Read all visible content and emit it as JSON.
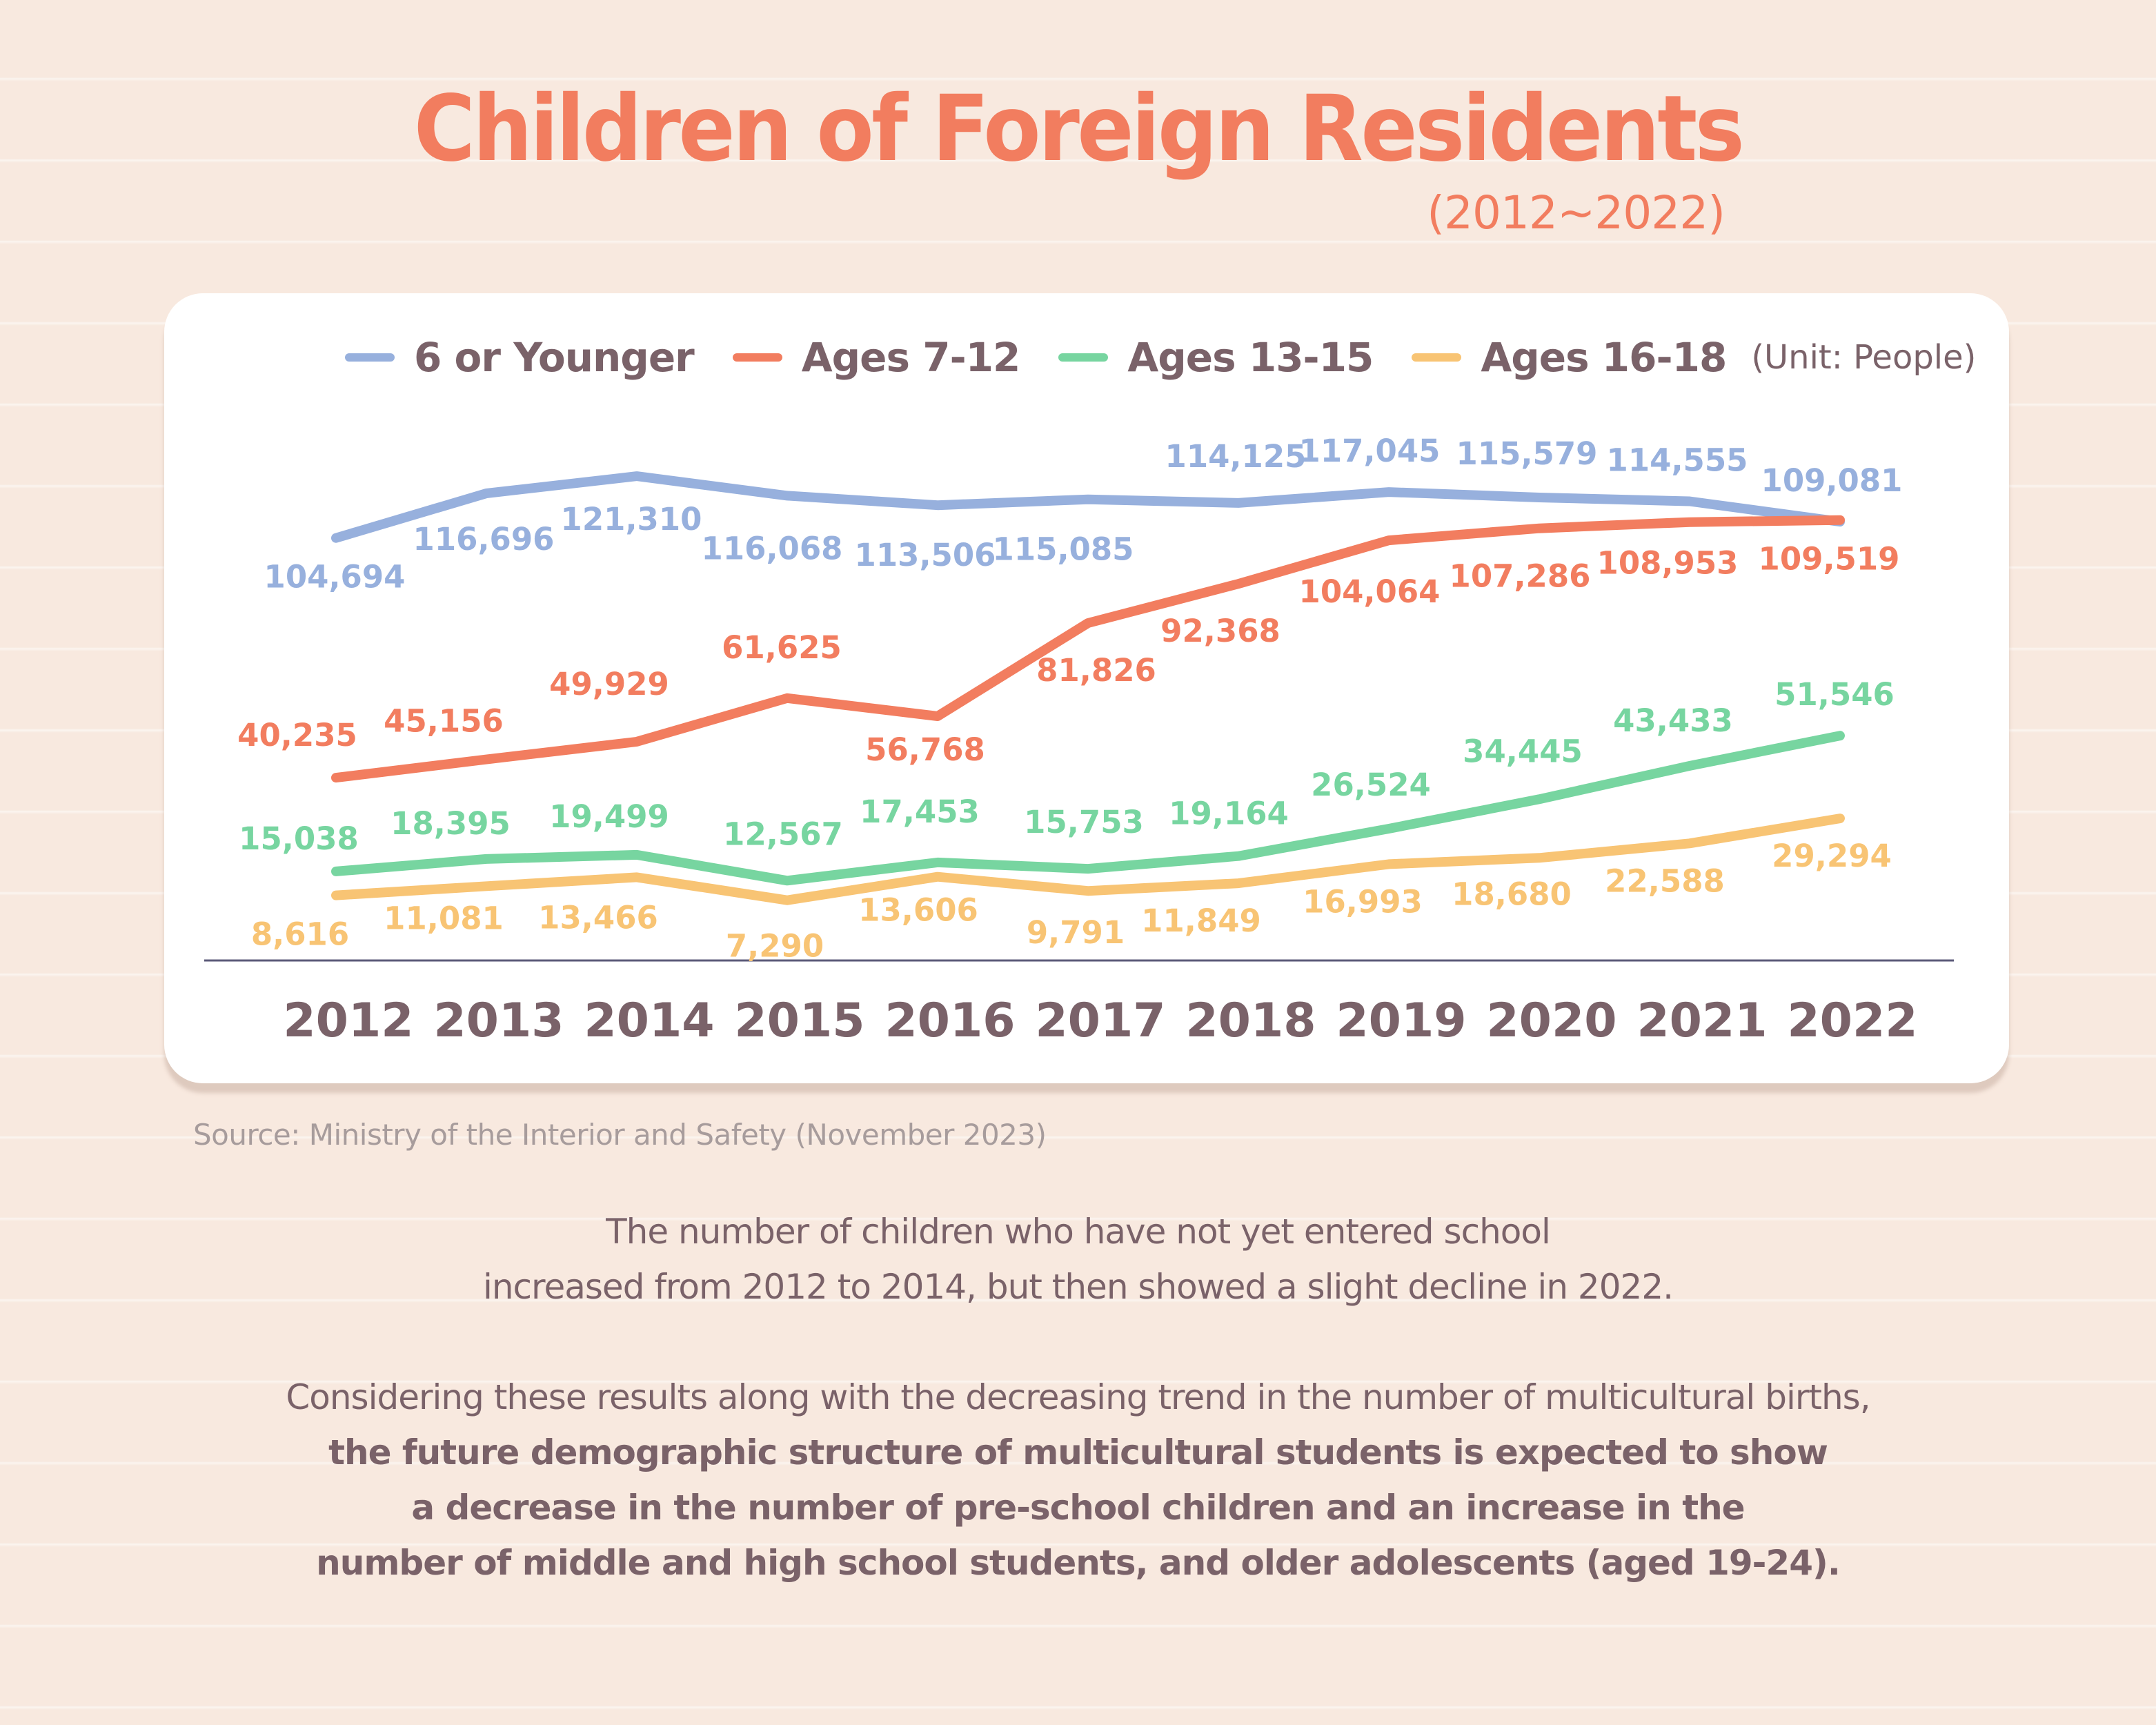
{
  "title": "Children of Foreign Residents",
  "subtitle": "(2012~2022)",
  "legend": {
    "items": [
      {
        "label": "6 or Younger",
        "color": "#97b0dd"
      },
      {
        "label": "Ages 7-12",
        "color": "#f27d5f"
      },
      {
        "label": "Ages 13-15",
        "color": "#77d5a0"
      },
      {
        "label": "Ages 16-18",
        "color": "#f8c474"
      }
    ],
    "unit": "(Unit: People)"
  },
  "source": "Source: Ministry of the Interior and Safety (November 2023)",
  "paragraph1": {
    "line1": "The number of children who have not yet entered school",
    "line2": "increased from 2012 to 2014, but then showed a slight decline in 2022."
  },
  "paragraph2": {
    "line1": "Considering these results along with the decreasing trend in the number of multicultural births,",
    "bold1": "the future demographic structure of multicultural students is expected to show",
    "bold2": "a decrease in the number of pre-school children and an increase in the",
    "bold3": "number of middle and high school students, and older adolescents (aged 19-24)."
  },
  "chart_data": {
    "type": "line",
    "title": "Children of Foreign Residents (2012~2022)",
    "xlabel": "",
    "ylabel": "People",
    "unit": "People",
    "grid": false,
    "legend_position": "top",
    "x": [
      "2012",
      "2013",
      "2014",
      "2015",
      "2016",
      "2017",
      "2018",
      "2019",
      "2020",
      "2021",
      "2022"
    ],
    "series": [
      {
        "name": "6 or Younger",
        "color": "#97b0dd",
        "label_pos": "mixed",
        "values": [
          104694,
          116696,
          121310,
          116068,
          113506,
          115085,
          114125,
          117045,
          115579,
          114555,
          109081
        ],
        "labels": [
          "104,694",
          "116,696",
          "121,310",
          "116,068",
          "113,506",
          "115,085",
          "114,125",
          "117,045",
          "115,579",
          "114,555",
          "109,081"
        ]
      },
      {
        "name": "Ages 7-12",
        "color": "#f27d5f",
        "values": [
          40235,
          45156,
          49929,
          61625,
          56768,
          81826,
          92368,
          104064,
          107286,
          108953,
          109519
        ],
        "labels": [
          "40,235",
          "45,156",
          "49,929",
          "61,625",
          "56,768",
          "81,826",
          "92,368",
          "104,064",
          "107,286",
          "108,953",
          "109,519"
        ]
      },
      {
        "name": "Ages 13-15",
        "color": "#77d5a0",
        "values": [
          15038,
          18395,
          19499,
          12567,
          17453,
          15753,
          19164,
          26524,
          34445,
          43433,
          51546
        ],
        "labels": [
          "15,038",
          "18,395",
          "19,499",
          "12,567",
          "17,453",
          "15,753",
          "19,164",
          "26,524",
          "34,445",
          "43,433",
          "51,546"
        ]
      },
      {
        "name": "Ages 16-18",
        "color": "#f8c474",
        "values": [
          8616,
          11081,
          13466,
          7290,
          13606,
          9791,
          11849,
          16993,
          18680,
          22588,
          29294
        ],
        "labels": [
          "8,616",
          "11,081",
          "13,466",
          "7,290",
          "13,606",
          "9,791",
          "11,849",
          "16,993",
          "18,680",
          "22,588",
          "29,294"
        ]
      }
    ]
  }
}
